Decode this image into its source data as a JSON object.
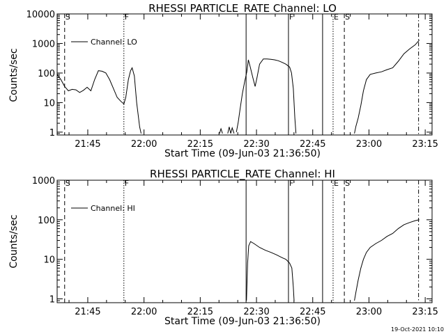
{
  "chart_data": [
    {
      "type": "line",
      "title": "RHESSI PARTICLE_RATE Channel: LO",
      "xlabel": "Start Time (09-Jun-03 21:36:50)",
      "ylabel": "Counts/sec",
      "x_tick_labels": [
        "21:45",
        "22:00",
        "22:15",
        "22:30",
        "22:45",
        "23:00",
        "23:15"
      ],
      "x_tick_minutes": [
        8.17,
        23.17,
        38.17,
        53.17,
        68.17,
        83.17,
        98.17
      ],
      "xlim_minutes": [
        0,
        100
      ],
      "yscale": "log",
      "ylim": [
        0.8,
        10000
      ],
      "y_tick_labels": [
        "1",
        "10",
        "100",
        "1000",
        "10000"
      ],
      "legend": {
        "label": "Channel: LO",
        "position": "top-left"
      },
      "markers": [
        {
          "label": "S",
          "minute": 2.0,
          "style": "dashed"
        },
        {
          "label": "F",
          "minute": 17.8,
          "style": "dotted"
        },
        {
          "label": "",
          "minute": 50.4,
          "style": "solid"
        },
        {
          "label": "F",
          "minute": 61.7,
          "style": "solid"
        },
        {
          "label": "",
          "minute": 70.8,
          "style": "solid"
        },
        {
          "label": "E",
          "minute": 73.6,
          "style": "dotted"
        },
        {
          "label": "S",
          "minute": 76.6,
          "style": "dashed"
        },
        {
          "label": "",
          "minute": 96.4,
          "style": "dashdot"
        }
      ],
      "series": [
        {
          "segments": [
            [
              [
                0,
                90
              ],
              [
                1,
                60
              ],
              [
                2,
                35
              ],
              [
                3,
                25
              ],
              [
                4,
                28
              ],
              [
                5,
                27
              ],
              [
                6,
                22
              ],
              [
                7,
                26
              ],
              [
                8,
                33
              ],
              [
                9,
                25
              ],
              [
                10,
                60
              ],
              [
                11,
                120
              ],
              [
                12,
                115
              ],
              [
                13,
                100
              ],
              [
                14,
                60
              ],
              [
                15,
                30
              ],
              [
                16,
                15
              ],
              [
                17,
                11
              ],
              [
                17.8,
                9
              ],
              [
                18.3,
                15
              ],
              [
                19,
                60
              ],
              [
                19.6,
                120
              ],
              [
                20,
                150
              ],
              [
                20.6,
                80
              ],
              [
                21.2,
                10
              ],
              [
                22,
                1.5
              ],
              [
                22.4,
                0.9
              ]
            ],
            [
              [
                43.3,
                0.9
              ],
              [
                43.7,
                1.3
              ],
              [
                44.1,
                0.9
              ]
            ],
            [
              [
                45.5,
                0.9
              ],
              [
                45.9,
                1.5
              ],
              [
                46.3,
                0.9
              ],
              [
                46.7,
                1.4
              ],
              [
                47.2,
                0.9
              ]
            ],
            [
              [
                47.8,
                1.0
              ],
              [
                48.3,
                2.2
              ],
              [
                48.8,
                6
              ],
              [
                49.4,
                20
              ],
              [
                50,
                50
              ],
              [
                50.6,
                110
              ],
              [
                51,
                280
              ],
              [
                51.5,
                160
              ],
              [
                52.2,
                70
              ],
              [
                52.8,
                35
              ],
              [
                53.3,
                70
              ],
              [
                54,
                200
              ],
              [
                55,
                300
              ],
              [
                56,
                300
              ],
              [
                57,
                290
              ],
              [
                58,
                280
              ],
              [
                59,
                260
              ],
              [
                60,
                230
              ],
              [
                61,
                200
              ],
              [
                62,
                160
              ],
              [
                62.5,
                100
              ],
              [
                63,
                30
              ],
              [
                63.4,
                3
              ],
              [
                63.7,
                0.9
              ]
            ],
            [
              [
                79.3,
                0.9
              ],
              [
                79.7,
                1.6
              ],
              [
                80.3,
                3
              ],
              [
                81,
                8
              ],
              [
                81.7,
                25
              ],
              [
                82.5,
                60
              ],
              [
                83.5,
                90
              ],
              [
                85,
                100
              ],
              [
                86.5,
                110
              ],
              [
                88,
                130
              ],
              [
                89.5,
                150
              ],
              [
                91,
                250
              ],
              [
                92.5,
                450
              ],
              [
                94,
                650
              ],
              [
                95.5,
                900
              ],
              [
                96.6,
                1300
              ]
            ]
          ]
        }
      ]
    },
    {
      "type": "line",
      "title": "RHESSI PARTICLE_RATE Channel: HI",
      "xlabel": "Start Time (09-Jun-03 21:36:50)",
      "ylabel": "Counts/sec",
      "x_tick_labels": [
        "21:45",
        "22:00",
        "22:15",
        "22:30",
        "22:45",
        "23:00",
        "23:15"
      ],
      "x_tick_minutes": [
        8.17,
        23.17,
        38.17,
        53.17,
        68.17,
        83.17,
        98.17
      ],
      "xlim_minutes": [
        0,
        100
      ],
      "yscale": "log",
      "ylim": [
        0.8,
        1000
      ],
      "y_tick_labels": [
        "1",
        "10",
        "100",
        "1000"
      ],
      "legend": {
        "label": "Channel: HI",
        "position": "top-left"
      },
      "markers": [
        {
          "label": "S",
          "minute": 2.0,
          "style": "dashed"
        },
        {
          "label": "F",
          "minute": 17.8,
          "style": "dotted"
        },
        {
          "label": "",
          "minute": 50.4,
          "style": "solid"
        },
        {
          "label": "F",
          "minute": 61.7,
          "style": "solid"
        },
        {
          "label": "",
          "minute": 70.8,
          "style": "solid"
        },
        {
          "label": "E",
          "minute": 73.6,
          "style": "dotted"
        },
        {
          "label": "S",
          "minute": 76.6,
          "style": "dashed"
        },
        {
          "label": "",
          "minute": 96.4,
          "style": "dashdot"
        }
      ],
      "series": [
        {
          "segments": [
            [
              [
                50.5,
                0.9
              ],
              [
                50.8,
                8
              ],
              [
                51.1,
                22
              ],
              [
                51.6,
                28
              ],
              [
                52.5,
                25
              ],
              [
                54,
                20
              ],
              [
                55.5,
                17
              ],
              [
                57,
                15
              ],
              [
                58.5,
                13
              ],
              [
                60,
                11
              ],
              [
                61,
                10
              ],
              [
                62,
                8
              ],
              [
                62.6,
                6
              ],
              [
                63,
                2
              ],
              [
                63.2,
                0.9
              ]
            ],
            [
              [
                79.3,
                0.9
              ],
              [
                79.7,
                1.5
              ],
              [
                80.3,
                3
              ],
              [
                81,
                6
              ],
              [
                81.7,
                10
              ],
              [
                82.5,
                15
              ],
              [
                83.5,
                20
              ],
              [
                85,
                25
              ],
              [
                86.5,
                30
              ],
              [
                88,
                38
              ],
              [
                89.5,
                45
              ],
              [
                91,
                60
              ],
              [
                92.5,
                75
              ],
              [
                94,
                85
              ],
              [
                95.5,
                95
              ],
              [
                96.6,
                100
              ]
            ]
          ]
        }
      ]
    }
  ],
  "footer": {
    "timestamp": "19-Oct-2021 10:10"
  }
}
